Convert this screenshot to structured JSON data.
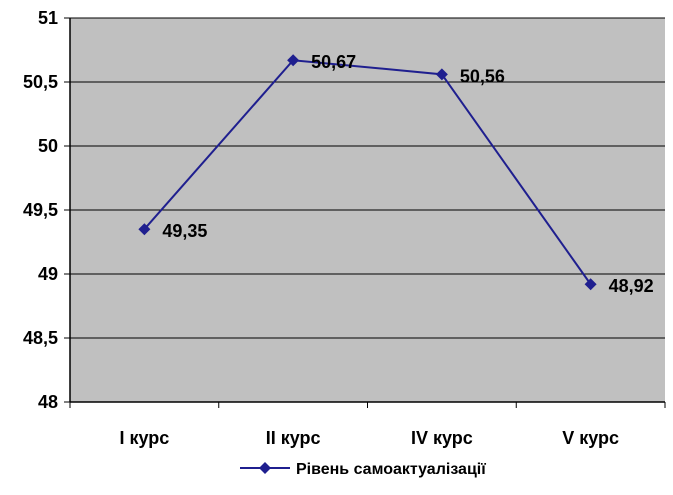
{
  "chart_data": {
    "type": "line",
    "categories": [
      "I курс",
      "II курс",
      "IV курс",
      "V курс"
    ],
    "series": [
      {
        "name": "Рівень самоактуалізації",
        "values": [
          49.35,
          50.67,
          50.56,
          48.92
        ]
      }
    ],
    "data_labels": [
      "49,35",
      "50,67",
      "50,56",
      "48,92"
    ],
    "y_ticks": [
      48,
      48.5,
      49,
      49.5,
      50,
      50.5,
      51
    ],
    "y_tick_labels": [
      "48",
      "48,5",
      "49",
      "49,5",
      "50",
      "50,5",
      "51"
    ],
    "ylim": [
      48,
      51
    ],
    "grid": true,
    "legend_position": "bottom",
    "colors": {
      "plot_bg": "#c0c0c0",
      "series": "#1f1f8f",
      "grid": "#000000",
      "axis": "#000000"
    }
  }
}
